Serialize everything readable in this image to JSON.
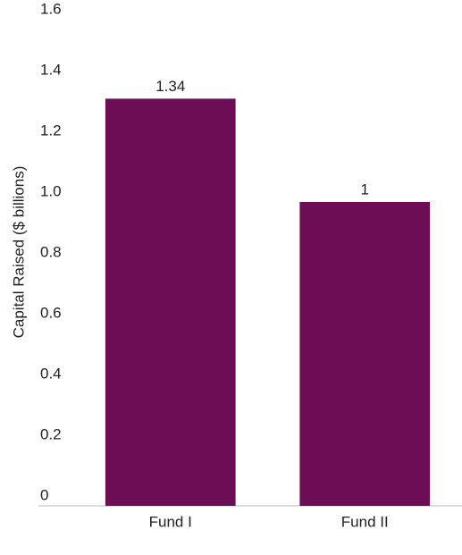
{
  "chart_data": {
    "type": "bar",
    "ylabel": "Capital Raised ($ billions)",
    "categories": [
      "Fund I",
      "Fund II"
    ],
    "values": [
      1.34,
      1
    ],
    "color": "#6d0d56",
    "ylim": [
      0,
      1.6
    ],
    "yticks": [
      0,
      0.2,
      0.4,
      0.6,
      0.8,
      {
        "value": 1,
        "label": "1.0"
      },
      1.2,
      1.4,
      1.6
    ]
  }
}
